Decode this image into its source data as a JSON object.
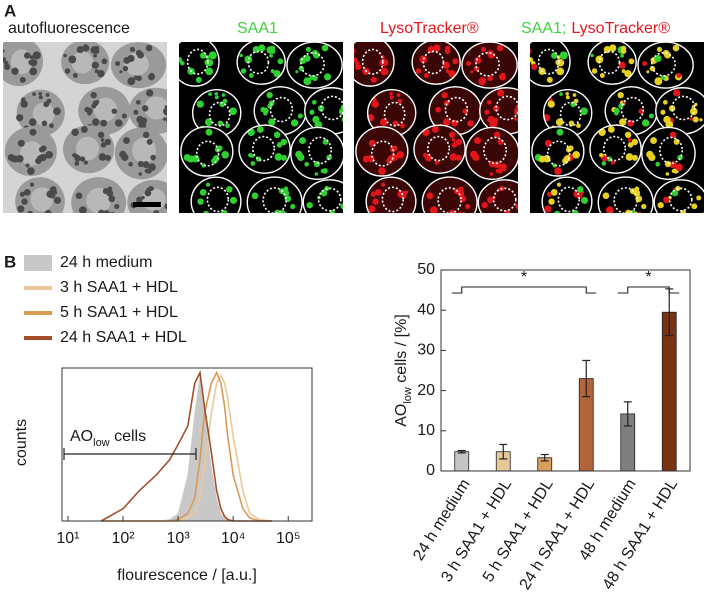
{
  "panel_labels": [
    "A",
    "B"
  ],
  "image_titles": {
    "autofluorescence": "autofluorescence",
    "saa1": "SAA1",
    "lysotracker": "LysoTracker®",
    "merge_saa1": "SAA1;",
    "merge_lysotracker": "LysoTracker®"
  },
  "chart_data": [
    {
      "type": "line",
      "xlabel": "flourescence / [a.u.]",
      "ylabel": "counts",
      "log_x": true,
      "xlim": [
        7.8,
        270000
      ],
      "ylim": [
        0,
        100
      ],
      "xticks": [
        {
          "value": 10,
          "label": "10¹"
        },
        {
          "value": 100,
          "label": "10²"
        },
        {
          "value": 1000,
          "label": "10³"
        },
        {
          "value": 10000,
          "label": "10⁴"
        },
        {
          "value": 100000,
          "label": "10⁵"
        }
      ],
      "annotation": {
        "main": "AO",
        "sub": "low",
        "rest": " cells"
      },
      "x": [
        40,
        100,
        200,
        400,
        700,
        1000,
        1500,
        2000,
        2500,
        3000,
        4000,
        5000,
        6000,
        7000,
        8000,
        10000,
        15000,
        20000,
        30000,
        50000
      ],
      "series": [
        {
          "name": "24 h medium",
          "color": "#c8c8c8",
          "filled": true,
          "values": [
            0,
            0,
            0,
            0,
            1,
            5,
            30,
            70,
            95,
            75,
            35,
            15,
            5,
            2,
            1,
            0,
            0,
            0,
            0,
            0
          ]
        },
        {
          "name": "3 h SAA1 + HDL",
          "color": "#e9c99b",
          "filled": false,
          "values": [
            0,
            0,
            0,
            0,
            0,
            0,
            2,
            5,
            15,
            35,
            70,
            90,
            95,
            90,
            80,
            55,
            20,
            5,
            1,
            0
          ]
        },
        {
          "name": "5 h SAA1 + HDL",
          "color": "#d99a52",
          "filled": false,
          "values": [
            0,
            0,
            0,
            0,
            0,
            1,
            5,
            15,
            40,
            70,
            90,
            97,
            90,
            75,
            55,
            30,
            8,
            2,
            0,
            0
          ]
        },
        {
          "name": "24 h SAA1 + HDL",
          "color": "#a44f2a",
          "filled": false,
          "values": [
            0,
            8,
            20,
            30,
            40,
            50,
            62,
            90,
            97,
            75,
            45,
            20,
            8,
            3,
            1,
            0,
            0,
            0,
            0,
            0
          ]
        }
      ]
    },
    {
      "type": "bar",
      "ylabel": {
        "main": "AO",
        "sub": "low",
        "rest": " cells / [%]"
      },
      "categories": [
        "24 h medium",
        "3 h SAA1 + HDL",
        "5 h SAA1 + HDL",
        "24 h SAA1 + HDL",
        "48 h medium",
        "48 h SAA1 + HDL"
      ],
      "values": [
        4.8,
        4.8,
        3.3,
        23,
        14.2,
        39.5
      ],
      "errors": [
        0.3,
        1.8,
        0.8,
        4.5,
        3,
        5.8
      ],
      "colors": [
        "#c4c4c4",
        "#e6c79a",
        "#d99f5c",
        "#b4643a",
        "#7f7f7f",
        "#773312"
      ],
      "ylim": [
        0,
        50
      ],
      "yticks": [
        0,
        10,
        20,
        30,
        40,
        50
      ],
      "annotations": [
        "*",
        "*"
      ]
    }
  ]
}
